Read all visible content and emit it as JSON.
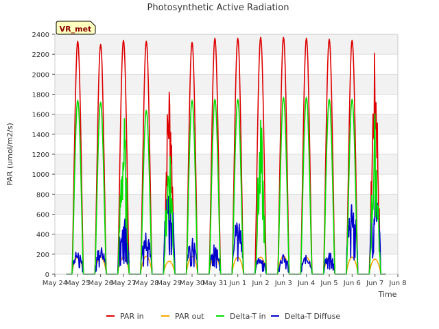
{
  "chart_data": {
    "type": "line",
    "title": "Photosynthetic Active Radiation",
    "xlabel": "Time",
    "ylabel": "PAR (umol/m2/s)",
    "ylim": [
      0,
      2400
    ],
    "yticks": [
      0,
      200,
      400,
      600,
      800,
      1000,
      1200,
      1400,
      1600,
      1800,
      2000,
      2200,
      2400
    ],
    "xlim": [
      0,
      15
    ],
    "xticks": [
      {
        "x": 0,
        "label": "May 24"
      },
      {
        "x": 1,
        "label": "May 25"
      },
      {
        "x": 2,
        "label": "May 26"
      },
      {
        "x": 3,
        "label": "May 27"
      },
      {
        "x": 4,
        "label": "May 28"
      },
      {
        "x": 5,
        "label": "May 29"
      },
      {
        "x": 6,
        "label": "May 30"
      },
      {
        "x": 7,
        "label": "May 31"
      },
      {
        "x": 8,
        "label": "Jun 1"
      },
      {
        "x": 9,
        "label": "Jun 2"
      },
      {
        "x": 10,
        "label": "Jun 3"
      },
      {
        "x": 11,
        "label": "Jun 4"
      },
      {
        "x": 12,
        "label": "Jun 5"
      },
      {
        "x": 13,
        "label": "Jun 6"
      },
      {
        "x": 14,
        "label": "Jun 7"
      },
      {
        "x": 15,
        "label": "Jun 8"
      }
    ],
    "grid": "horizontal bands",
    "legend_position": "bottom",
    "annotation": "VR_met",
    "series": [
      {
        "name": "PAR in",
        "color": "#dd0000",
        "peaks": [
          2330,
          2300,
          2340,
          2330,
          2020,
          2320,
          2360,
          2360,
          2370,
          2370,
          2360,
          2350,
          2340,
          2250
        ]
      },
      {
        "name": "PAR out",
        "color": "#ffa500",
        "peaks": [
          170,
          170,
          170,
          180,
          130,
          180,
          180,
          170,
          170,
          180,
          170,
          160,
          170,
          150
        ]
      },
      {
        "name": "Delta-T in",
        "color": "#00dd00",
        "peaks": [
          1740,
          1720,
          1690,
          1640,
          1450,
          1740,
          1750,
          1750,
          1550,
          1770,
          1770,
          1750,
          1750,
          1640
        ]
      },
      {
        "name": "Delta-T Diffuse",
        "color": "#0000cc",
        "peaks": [
          240,
          290,
          600,
          420,
          900,
          380,
          320,
          580,
          180,
          200,
          190,
          220,
          780,
          890
        ]
      }
    ]
  }
}
